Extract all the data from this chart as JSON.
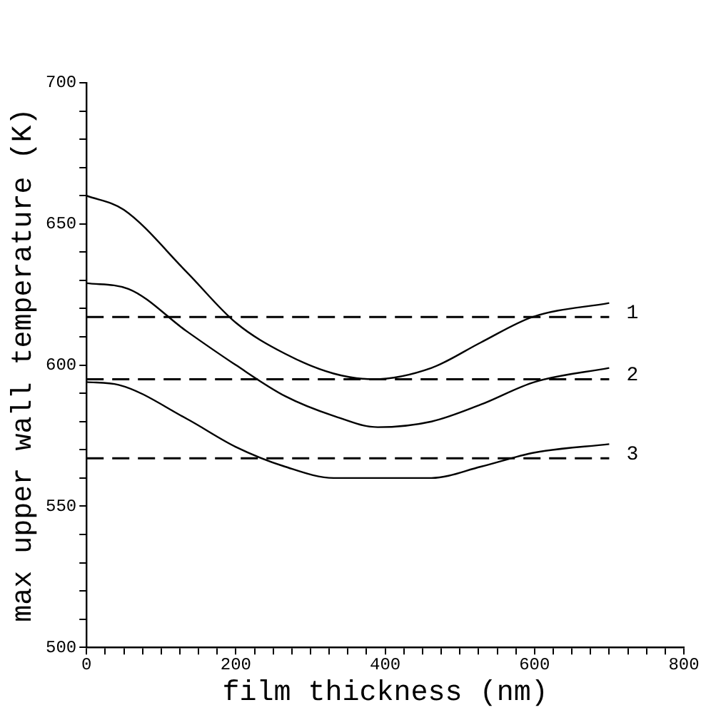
{
  "chart_data": {
    "type": "line",
    "xlabel": "film thickness (nm)",
    "ylabel": "max upper wall temperature (K)",
    "xlim": [
      0,
      800
    ],
    "ylim": [
      500,
      700
    ],
    "xticks": [
      0,
      {
        "value": 25,
        "label": null
      },
      {
        "value": 50,
        "label": null
      },
      {
        "value": 75,
        "label": null
      },
      {
        "value": 100,
        "label": null
      },
      {
        "value": 125,
        "label": null
      },
      {
        "value": 150,
        "label": null
      },
      {
        "value": 175,
        "label": null
      },
      200,
      {
        "value": 225,
        "label": null
      },
      {
        "value": 250,
        "label": null
      },
      {
        "value": 275,
        "label": null
      },
      {
        "value": 300,
        "label": null
      },
      {
        "value": 325,
        "label": null
      },
      {
        "value": 350,
        "label": null
      },
      {
        "value": 375,
        "label": null
      },
      400,
      {
        "value": 425,
        "label": null
      },
      {
        "value": 450,
        "label": null
      },
      {
        "value": 475,
        "label": null
      },
      {
        "value": 500,
        "label": null
      },
      {
        "value": 525,
        "label": null
      },
      {
        "value": 550,
        "label": null
      },
      {
        "value": 575,
        "label": null
      },
      600,
      {
        "value": 625,
        "label": null
      },
      {
        "value": 650,
        "label": null
      },
      {
        "value": 675,
        "label": null
      },
      {
        "value": 700,
        "label": null
      },
      {
        "value": 725,
        "label": null
      },
      {
        "value": 750,
        "label": null
      },
      {
        "value": 775,
        "label": null
      },
      800
    ],
    "yticks": [
      500,
      {
        "value": 510,
        "label": null
      },
      {
        "value": 520,
        "label": null
      },
      {
        "value": 530,
        "label": null
      },
      {
        "value": 540,
        "label": null
      },
      550,
      {
        "value": 560,
        "label": null
      },
      {
        "value": 570,
        "label": null
      },
      {
        "value": 580,
        "label": null
      },
      {
        "value": 590,
        "label": null
      },
      600,
      {
        "value": 610,
        "label": null
      },
      {
        "value": 620,
        "label": null
      },
      {
        "value": 630,
        "label": null
      },
      {
        "value": 640,
        "label": null
      },
      650,
      {
        "value": 660,
        "label": null
      },
      {
        "value": 670,
        "label": null
      },
      {
        "value": 680,
        "label": null
      },
      {
        "value": 690,
        "label": null
      },
      700
    ],
    "series": [
      {
        "color": "#000000",
        "x": [
          0,
          50,
          134,
          200,
          266,
          331,
          384,
          462,
          528,
          597,
          700
        ],
        "values": [
          660,
          655,
          633,
          615,
          604,
          597,
          595,
          599,
          608,
          617,
          622
        ]
      },
      {
        "color": "#000000",
        "x": [
          0,
          56,
          134,
          200,
          266,
          331,
          390,
          462,
          528,
          600,
          700
        ],
        "values": [
          629,
          627,
          612,
          600,
          589,
          582,
          578,
          580,
          586,
          594,
          599
        ]
      },
      {
        "color": "#000000",
        "x": [
          0,
          43,
          134,
          200,
          266,
          331,
          400,
          462,
          528,
          600,
          700
        ],
        "values": [
          594,
          593,
          581,
          571,
          564,
          560,
          560,
          560,
          564,
          569,
          572
        ]
      }
    ],
    "ref_lines": [
      {
        "axis": "y",
        "value": 617,
        "color": "#000000",
        "line_style": "dashed"
      },
      {
        "axis": "y",
        "value": 595,
        "color": "#000000",
        "line_style": "dashed"
      },
      {
        "axis": "y",
        "value": 567,
        "color": "#000000",
        "line_style": "dashed"
      }
    ],
    "annotations": [
      "1",
      "2",
      "3"
    ],
    "grid": false,
    "legend": false,
    "marker": "none",
    "line_style": "solid"
  }
}
